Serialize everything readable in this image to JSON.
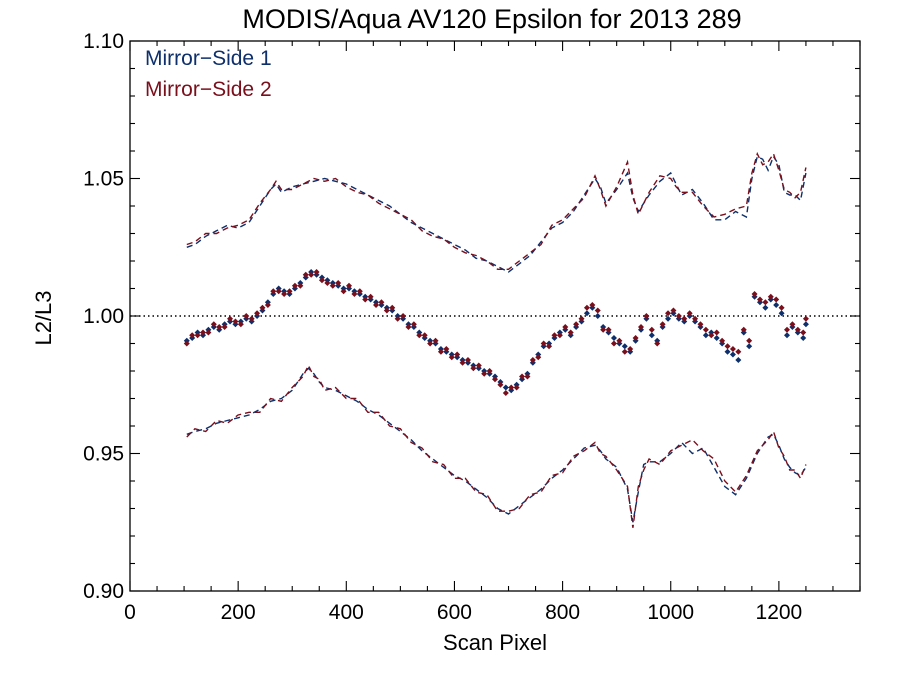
{
  "chart_data": {
    "type": "scatter",
    "title": "MODIS/Aqua AV120 Epsilon for 2013 289",
    "xlabel": "Scan Pixel",
    "ylabel": "L2/L3",
    "xlim": [
      0,
      1350
    ],
    "ylim": [
      0.9,
      1.1
    ],
    "x_ticks": [
      0,
      200,
      400,
      600,
      800,
      1000,
      1200
    ],
    "x_tick_labels": [
      "0",
      "200",
      "400",
      "600",
      "800",
      "1000",
      "1200"
    ],
    "y_ticks": [
      0.9,
      0.95,
      1.0,
      1.05,
      1.1
    ],
    "y_tick_labels": [
      "0.90",
      "0.95",
      "1.00",
      "1.05",
      "1.10"
    ],
    "reference_line": {
      "y": 1.0,
      "style": "dotted",
      "color": "#000000"
    },
    "legend_position": "top-left",
    "series": [
      {
        "name": "Mirror−Side 1",
        "color": "#0d2f6b",
        "x": [
          105,
          115,
          125,
          135,
          145,
          155,
          165,
          175,
          185,
          195,
          205,
          215,
          225,
          235,
          245,
          255,
          265,
          275,
          285,
          295,
          305,
          315,
          325,
          335,
          345,
          355,
          365,
          375,
          385,
          395,
          405,
          415,
          425,
          435,
          445,
          455,
          465,
          475,
          485,
          495,
          505,
          515,
          525,
          535,
          545,
          555,
          565,
          575,
          585,
          595,
          605,
          615,
          625,
          635,
          645,
          655,
          665,
          675,
          685,
          695,
          705,
          715,
          725,
          735,
          745,
          755,
          765,
          775,
          785,
          795,
          805,
          815,
          825,
          835,
          845,
          855,
          865,
          875,
          885,
          895,
          905,
          915,
          925,
          935,
          945,
          955,
          965,
          975,
          985,
          995,
          1005,
          1015,
          1025,
          1035,
          1045,
          1055,
          1065,
          1075,
          1085,
          1095,
          1105,
          1115,
          1125,
          1135,
          1145,
          1155,
          1165,
          1175,
          1185,
          1195,
          1205,
          1215,
          1225,
          1235,
          1245,
          1250
        ],
        "values": [
          0.991,
          0.992,
          0.994,
          0.993,
          0.995,
          0.996,
          0.995,
          0.997,
          0.998,
          0.997,
          0.998,
          0.999,
          0.998,
          1.0,
          1.002,
          1.005,
          1.008,
          1.01,
          1.009,
          1.008,
          1.01,
          1.012,
          1.014,
          1.016,
          1.015,
          1.014,
          1.013,
          1.012,
          1.011,
          1.01,
          1.01,
          1.009,
          1.008,
          1.007,
          1.006,
          1.005,
          1.004,
          1.003,
          1.002,
          1.0,
          0.999,
          0.997,
          0.996,
          0.994,
          0.992,
          0.991,
          0.99,
          0.988,
          0.987,
          0.986,
          0.985,
          0.984,
          0.983,
          0.982,
          0.981,
          0.98,
          0.979,
          0.978,
          0.976,
          0.974,
          0.973,
          0.975,
          0.977,
          0.979,
          0.983,
          0.986,
          0.989,
          0.99,
          0.992,
          0.994,
          0.995,
          0.993,
          0.996,
          0.998,
          1.001,
          1.003,
          1.0,
          0.996,
          0.994,
          0.992,
          0.99,
          0.989,
          0.987,
          0.991,
          0.995,
          0.999,
          0.993,
          0.991,
          0.996,
          0.999,
          1.001,
          0.999,
          0.998,
          1.0,
          0.998,
          0.996,
          0.993,
          0.994,
          0.992,
          0.99,
          0.987,
          0.986,
          0.984,
          0.994,
          0.989,
          1.007,
          1.005,
          1.003,
          1.006,
          1.004,
          1.001,
          0.993,
          0.996,
          0.994,
          0.992,
          0.997
        ]
      },
      {
        "name": "Mirror−Side 2",
        "color": "#7a0f1c",
        "x": [
          105,
          115,
          125,
          135,
          145,
          155,
          165,
          175,
          185,
          195,
          205,
          215,
          225,
          235,
          245,
          255,
          265,
          275,
          285,
          295,
          305,
          315,
          325,
          335,
          345,
          355,
          365,
          375,
          385,
          395,
          405,
          415,
          425,
          435,
          445,
          455,
          465,
          475,
          485,
          495,
          505,
          515,
          525,
          535,
          545,
          555,
          565,
          575,
          585,
          595,
          605,
          615,
          625,
          635,
          645,
          655,
          665,
          675,
          685,
          695,
          705,
          715,
          725,
          735,
          745,
          755,
          765,
          775,
          785,
          795,
          805,
          815,
          825,
          835,
          845,
          855,
          865,
          875,
          885,
          895,
          905,
          915,
          925,
          935,
          945,
          955,
          965,
          975,
          985,
          995,
          1005,
          1015,
          1025,
          1035,
          1045,
          1055,
          1065,
          1075,
          1085,
          1095,
          1105,
          1115,
          1125,
          1135,
          1145,
          1155,
          1165,
          1175,
          1185,
          1195,
          1205,
          1215,
          1225,
          1235,
          1245,
          1250
        ],
        "values": [
          0.99,
          0.993,
          0.993,
          0.994,
          0.994,
          0.997,
          0.996,
          0.996,
          0.999,
          0.998,
          0.997,
          1.0,
          0.999,
          1.001,
          1.003,
          1.004,
          1.009,
          1.009,
          1.008,
          1.009,
          1.011,
          1.011,
          1.015,
          1.015,
          1.016,
          1.013,
          1.012,
          1.011,
          1.012,
          1.009,
          1.011,
          1.008,
          1.009,
          1.006,
          1.007,
          1.004,
          1.005,
          1.002,
          1.003,
          0.999,
          1.0,
          0.996,
          0.997,
          0.993,
          0.993,
          0.99,
          0.991,
          0.987,
          0.988,
          0.985,
          0.986,
          0.983,
          0.984,
          0.981,
          0.982,
          0.979,
          0.98,
          0.977,
          0.975,
          0.972,
          0.974,
          0.974,
          0.978,
          0.978,
          0.984,
          0.985,
          0.99,
          0.989,
          0.993,
          0.993,
          0.996,
          0.994,
          0.997,
          0.999,
          1.003,
          1.004,
          1.002,
          0.995,
          0.995,
          0.99,
          0.991,
          0.987,
          0.988,
          0.992,
          0.996,
          1.0,
          0.995,
          0.99,
          0.997,
          1.001,
          1.002,
          1.0,
          0.999,
          1.001,
          0.999,
          0.997,
          0.995,
          0.993,
          0.994,
          0.991,
          0.989,
          0.988,
          0.987,
          0.995,
          0.991,
          1.008,
          1.006,
          1.005,
          1.007,
          1.006,
          1.003,
          0.995,
          0.997,
          0.995,
          0.994,
          0.999
        ]
      }
    ],
    "envelope_lines": [
      {
        "series": "Mirror−Side 1",
        "style": "dashed",
        "color": "#0d2f6b",
        "upper": {
          "x": [
            105,
            120,
            140,
            160,
            180,
            200,
            220,
            240,
            260,
            270,
            280,
            300,
            320,
            340,
            360,
            380,
            400,
            420,
            440,
            460,
            480,
            500,
            520,
            540,
            560,
            580,
            600,
            620,
            640,
            660,
            680,
            700,
            720,
            740,
            760,
            780,
            800,
            820,
            840,
            860,
            870,
            880,
            900,
            920,
            930,
            940,
            960,
            980,
            1000,
            1010,
            1020,
            1040,
            1060,
            1080,
            1100,
            1120,
            1140,
            1150,
            1160,
            1170,
            1180,
            1190,
            1200,
            1210,
            1220,
            1230,
            1240,
            1250
          ],
          "values": [
            1.025,
            1.026,
            1.029,
            1.031,
            1.033,
            1.032,
            1.034,
            1.04,
            1.046,
            1.048,
            1.045,
            1.047,
            1.048,
            1.049,
            1.05,
            1.049,
            1.048,
            1.046,
            1.044,
            1.042,
            1.04,
            1.037,
            1.034,
            1.032,
            1.03,
            1.028,
            1.026,
            1.024,
            1.021,
            1.02,
            1.018,
            1.016,
            1.019,
            1.022,
            1.027,
            1.032,
            1.034,
            1.038,
            1.044,
            1.05,
            1.047,
            1.041,
            1.046,
            1.052,
            1.043,
            1.038,
            1.044,
            1.049,
            1.052,
            1.048,
            1.044,
            1.046,
            1.041,
            1.035,
            1.035,
            1.038,
            1.036,
            1.05,
            1.058,
            1.057,
            1.053,
            1.058,
            1.055,
            1.045,
            1.044,
            1.044,
            1.042,
            1.052
          ]
        },
        "lower": {
          "x": [
            105,
            120,
            140,
            160,
            180,
            200,
            220,
            240,
            260,
            280,
            300,
            320,
            330,
            340,
            350,
            360,
            380,
            400,
            420,
            440,
            460,
            480,
            500,
            520,
            540,
            560,
            580,
            600,
            620,
            640,
            660,
            680,
            700,
            720,
            740,
            760,
            780,
            800,
            820,
            840,
            860,
            870,
            880,
            900,
            920,
            930,
            940,
            950,
            960,
            980,
            1000,
            1020,
            1040,
            1060,
            1080,
            1100,
            1120,
            1140,
            1160,
            1180,
            1190,
            1200,
            1210,
            1220,
            1230,
            1240,
            1250
          ],
          "values": [
            0.957,
            0.958,
            0.959,
            0.961,
            0.962,
            0.963,
            0.964,
            0.966,
            0.969,
            0.97,
            0.973,
            0.979,
            0.981,
            0.979,
            0.976,
            0.974,
            0.973,
            0.971,
            0.969,
            0.966,
            0.964,
            0.961,
            0.958,
            0.955,
            0.951,
            0.948,
            0.945,
            0.942,
            0.94,
            0.937,
            0.934,
            0.93,
            0.928,
            0.931,
            0.934,
            0.937,
            0.941,
            0.944,
            0.948,
            0.952,
            0.953,
            0.951,
            0.948,
            0.945,
            0.937,
            0.925,
            0.936,
            0.946,
            0.947,
            0.947,
            0.95,
            0.954,
            0.95,
            0.952,
            0.945,
            0.938,
            0.935,
            0.941,
            0.95,
            0.956,
            0.957,
            0.953,
            0.948,
            0.945,
            0.943,
            0.942,
            0.945
          ]
        }
      },
      {
        "series": "Mirror−Side 2",
        "style": "dashed",
        "color": "#7a0f1c",
        "upper": {
          "x": [
            105,
            120,
            140,
            160,
            180,
            200,
            220,
            240,
            260,
            270,
            280,
            300,
            320,
            340,
            360,
            380,
            400,
            420,
            440,
            460,
            480,
            500,
            520,
            540,
            560,
            580,
            600,
            620,
            640,
            660,
            680,
            700,
            720,
            740,
            760,
            780,
            800,
            820,
            840,
            860,
            870,
            880,
            900,
            920,
            930,
            940,
            960,
            980,
            1000,
            1010,
            1020,
            1040,
            1060,
            1080,
            1100,
            1120,
            1140,
            1150,
            1160,
            1170,
            1180,
            1190,
            1200,
            1210,
            1220,
            1230,
            1240,
            1250
          ],
          "values": [
            1.026,
            1.027,
            1.03,
            1.03,
            1.032,
            1.033,
            1.035,
            1.041,
            1.046,
            1.049,
            1.046,
            1.046,
            1.048,
            1.05,
            1.049,
            1.05,
            1.047,
            1.045,
            1.044,
            1.041,
            1.039,
            1.037,
            1.035,
            1.031,
            1.029,
            1.028,
            1.025,
            1.023,
            1.022,
            1.02,
            1.017,
            1.017,
            1.02,
            1.023,
            1.026,
            1.033,
            1.035,
            1.039,
            1.043,
            1.051,
            1.046,
            1.04,
            1.047,
            1.056,
            1.044,
            1.037,
            1.045,
            1.051,
            1.05,
            1.047,
            1.045,
            1.045,
            1.04,
            1.036,
            1.037,
            1.039,
            1.04,
            1.052,
            1.059,
            1.055,
            1.056,
            1.059,
            1.053,
            1.046,
            1.045,
            1.043,
            1.045,
            1.054
          ]
        },
        "lower": {
          "x": [
            105,
            120,
            140,
            160,
            180,
            200,
            220,
            240,
            260,
            280,
            300,
            320,
            330,
            340,
            350,
            360,
            380,
            400,
            420,
            440,
            460,
            480,
            500,
            520,
            540,
            560,
            580,
            600,
            620,
            640,
            660,
            680,
            700,
            720,
            740,
            760,
            780,
            800,
            820,
            840,
            860,
            870,
            880,
            900,
            920,
            930,
            940,
            950,
            960,
            980,
            1000,
            1020,
            1040,
            1060,
            1080,
            1100,
            1120,
            1140,
            1160,
            1180,
            1190,
            1200,
            1210,
            1220,
            1230,
            1240,
            1250
          ],
          "values": [
            0.956,
            0.959,
            0.958,
            0.962,
            0.961,
            0.964,
            0.965,
            0.965,
            0.97,
            0.969,
            0.974,
            0.978,
            0.982,
            0.978,
            0.977,
            0.973,
            0.974,
            0.97,
            0.97,
            0.965,
            0.965,
            0.96,
            0.959,
            0.954,
            0.952,
            0.947,
            0.946,
            0.941,
            0.941,
            0.936,
            0.935,
            0.929,
            0.929,
            0.93,
            0.935,
            0.936,
            0.942,
            0.943,
            0.949,
            0.951,
            0.954,
            0.95,
            0.949,
            0.944,
            0.938,
            0.923,
            0.938,
            0.944,
            0.948,
            0.946,
            0.951,
            0.953,
            0.955,
            0.951,
            0.948,
            0.94,
            0.936,
            0.942,
            0.951,
            0.955,
            0.958,
            0.952,
            0.949,
            0.944,
            0.944,
            0.941,
            0.946
          ]
        }
      }
    ]
  }
}
